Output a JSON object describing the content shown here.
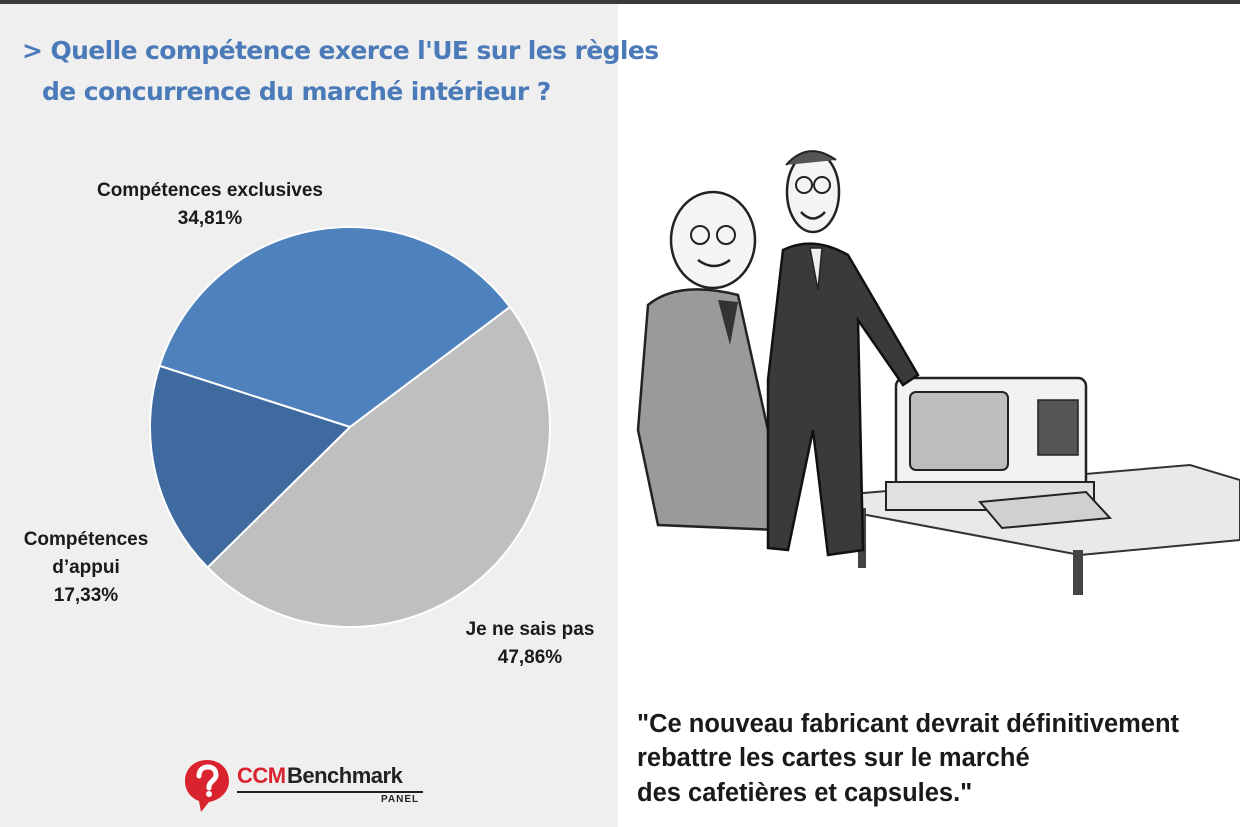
{
  "question": {
    "line1": "> Quelle compétence exerce l'UE sur les règles",
    "line2": "de concurrence du marché intérieur ?"
  },
  "chart_data": {
    "type": "pie",
    "slices": [
      {
        "label_line1": "Compétences  exclusives",
        "label_line2": "",
        "value": 34.81,
        "value_text": "34,81%",
        "color": "#4f81bd"
      },
      {
        "label_line1": "Je ne sais pas",
        "label_line2": "",
        "value": 47.86,
        "value_text": "47,86%",
        "color": "#bfbfbf"
      },
      {
        "label_line1": "Compétences",
        "label_line2": "d’appui",
        "value": 17.33,
        "value_text": "17,33%",
        "color": "#3e6aa0"
      }
    ]
  },
  "logo": {
    "ccm": "CCM",
    "benchmark": "Benchmark",
    "panel": "PANEL",
    "icon_name": "question-mark-pin-icon",
    "color": "#d9242f"
  },
  "caption": {
    "line1": "\"Ce nouveau fabricant devrait définitivement",
    "line2": "rebattre les cartes sur le marché",
    "line3": "des cafetières et capsules.\""
  }
}
